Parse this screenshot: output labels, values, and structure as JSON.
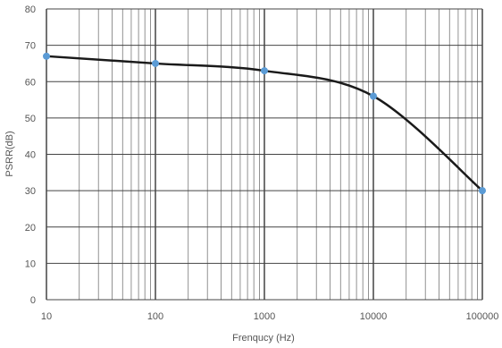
{
  "chart_data": {
    "type": "line",
    "title": "",
    "xlabel": "Frenqucy (Hz)",
    "ylabel": "PSRR(dB)",
    "x_scale": "log",
    "xlim": [
      10,
      100000
    ],
    "ylim": [
      0,
      80
    ],
    "x_ticks": [
      10,
      100,
      1000,
      10000,
      100000
    ],
    "x_tick_labels": [
      "10",
      "100",
      "1000",
      "10000",
      "100000"
    ],
    "y_ticks": [
      0,
      10,
      20,
      30,
      40,
      50,
      60,
      70,
      80
    ],
    "y_tick_labels": [
      "0",
      "10",
      "20",
      "30",
      "40",
      "50",
      "60",
      "70",
      "80"
    ],
    "grid": true,
    "legend": "none",
    "series": [
      {
        "x": [
          10,
          100,
          1000,
          10000,
          100000
        ],
        "y": [
          67,
          65,
          63,
          56,
          30
        ]
      }
    ],
    "colors": {
      "line": "#1a1a1a",
      "marker": "#5b9bd5",
      "grid_major": "#444444",
      "grid_minor": "#777777",
      "text": "#555555"
    }
  }
}
